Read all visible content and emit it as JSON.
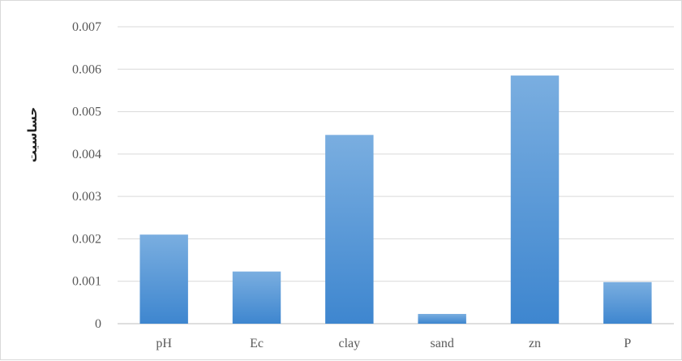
{
  "chart_data": {
    "type": "bar",
    "categories": [
      "pH",
      "Ec",
      "clay",
      "sand",
      "zn",
      "P"
    ],
    "values": [
      0.0021,
      0.00123,
      0.00445,
      0.00023,
      0.00585,
      0.00098
    ],
    "title": "",
    "xlabel": "",
    "ylabel": "حساسیت",
    "ylim": [
      0,
      0.007
    ],
    "yticks": [
      "0",
      "0.001",
      "0.002",
      "0.003",
      "0.004",
      "0.005",
      "0.006",
      "0.007"
    ],
    "grid": true,
    "legend": "none",
    "colors": {
      "bar_top": "#7aaee0",
      "bar_bottom": "#3e86cf",
      "grid": "#d9d9d9",
      "axis": "#bfbfbf",
      "tick_text": "#595959"
    }
  }
}
